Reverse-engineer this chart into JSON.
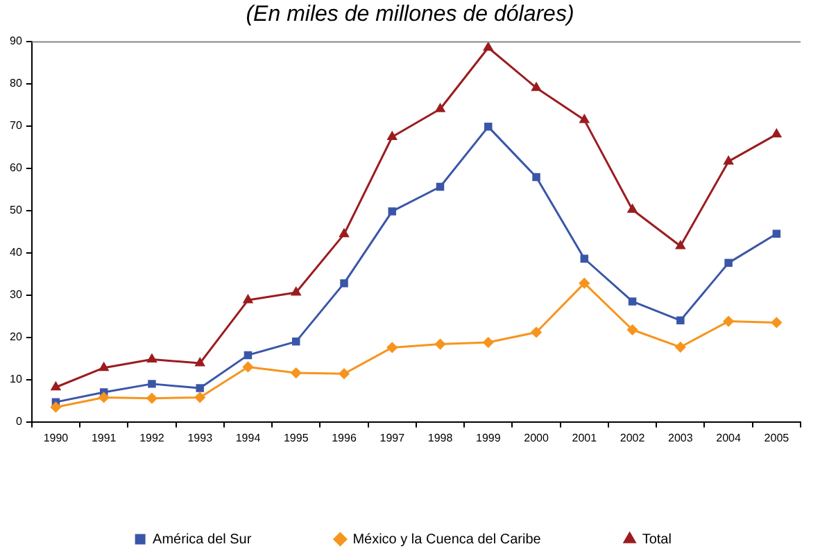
{
  "chart_data": {
    "type": "line",
    "title": "(En miles de millones de dólares)",
    "categories": [
      "1990",
      "1991",
      "1992",
      "1993",
      "1994",
      "1995",
      "1996",
      "1997",
      "1998",
      "1999",
      "2000",
      "2001",
      "2002",
      "2003",
      "2004",
      "2005"
    ],
    "series": [
      {
        "name": "América del Sur",
        "color": "#3a56a8",
        "marker": "square",
        "values": [
          4.7,
          7,
          9,
          8,
          15.8,
          19,
          32.8,
          49.8,
          55.6,
          69.8,
          57.9,
          38.6,
          28.5,
          24,
          37.6,
          44.5
        ]
      },
      {
        "name": "México y la Cuenca del Caribe",
        "color": "#f7941d",
        "marker": "diamond",
        "values": [
          3.5,
          5.8,
          5.6,
          5.8,
          13,
          11.6,
          11.4,
          17.6,
          18.4,
          18.8,
          21.2,
          32.8,
          21.8,
          17.7,
          23.8,
          23.5
        ]
      },
      {
        "name": "Total",
        "color": "#9b1c1f",
        "marker": "triangle",
        "values": [
          8.2,
          12.8,
          14.8,
          13.9,
          28.8,
          30.6,
          44.4,
          67.4,
          74,
          88.5,
          79,
          71.4,
          50.2,
          41.6,
          61.6,
          68
        ]
      }
    ],
    "ylim": [
      0,
      90
    ],
    "yticks": [
      0,
      10,
      20,
      30,
      40,
      50,
      60,
      70,
      80,
      90
    ],
    "grid": false,
    "legend": "bottom"
  }
}
